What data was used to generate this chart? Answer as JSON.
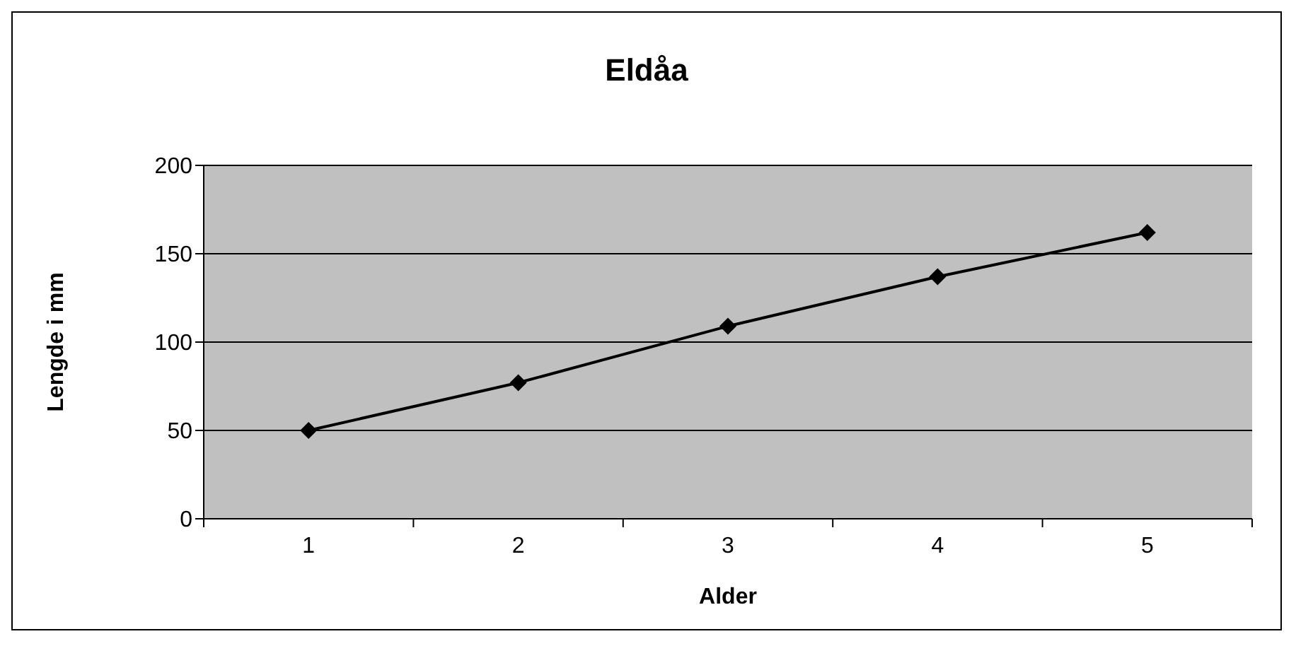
{
  "chart_data": {
    "type": "line",
    "title": "Eldåa",
    "xlabel": "Alder",
    "ylabel": "Lengde i mm",
    "categories": [
      "1",
      "2",
      "3",
      "4",
      "5"
    ],
    "series": [
      {
        "color": "#000000",
        "values": [
          50,
          77,
          109,
          137,
          162
        ]
      }
    ],
    "ylim": [
      0,
      200
    ],
    "yticks": [
      0,
      50,
      100,
      150,
      200
    ],
    "grid": "y",
    "legend": false,
    "marker": "diamond",
    "line_style": "solid"
  }
}
